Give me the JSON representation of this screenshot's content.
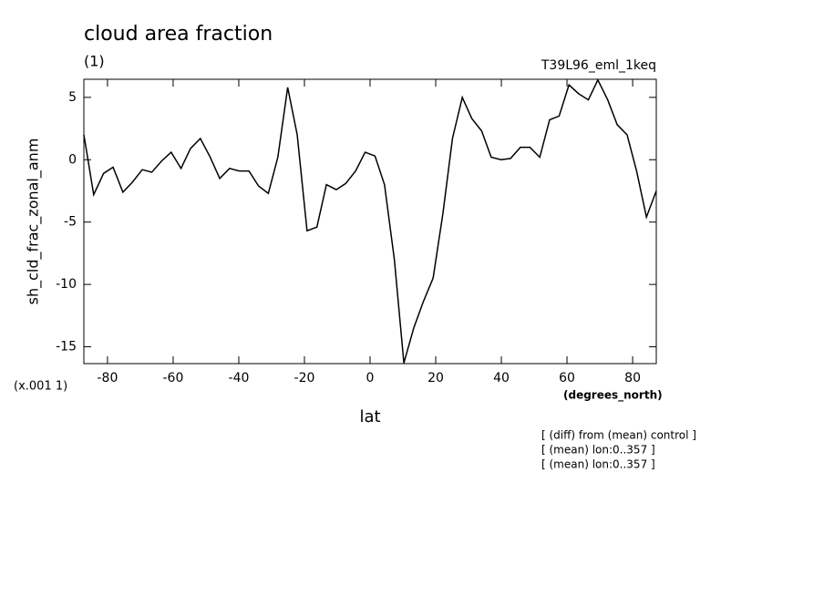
{
  "chart_data": {
    "type": "line",
    "title": "cloud area fraction",
    "subtitle": "(1)",
    "run_label": "T39L96_eml_1keq",
    "y_label": "sh_cld_frac_zonal_anm",
    "y_units": "(x.001 1)",
    "x_units": "(degrees_north)",
    "x_label": "lat",
    "notes": [
      "[ (diff) from (mean) control ]",
      "[ (mean) lon:0..357 ]",
      "[ (mean) lon:0..357 ]"
    ],
    "x": [
      -87.2,
      -84.2,
      -81.2,
      -78.3,
      -75.3,
      -72.4,
      -69.4,
      -66.5,
      -63.5,
      -60.6,
      -57.6,
      -54.7,
      -51.7,
      -48.7,
      -45.8,
      -42.8,
      -39.9,
      -36.9,
      -34.0,
      -31.0,
      -28.1,
      -25.1,
      -22.2,
      -19.2,
      -16.2,
      -13.3,
      -10.3,
      -7.4,
      -4.4,
      -1.5,
      1.5,
      4.4,
      7.4,
      10.3,
      13.3,
      16.2,
      19.2,
      22.2,
      25.1,
      28.1,
      31.0,
      34.0,
      36.9,
      39.9,
      42.8,
      45.8,
      48.7,
      51.7,
      54.7,
      57.6,
      60.6,
      63.5,
      66.5,
      69.4,
      72.4,
      75.3,
      78.3,
      81.2,
      84.2,
      87.2
    ],
    "series": [
      {
        "color": "#000000",
        "values": [
          2.0,
          -2.8,
          -1.1,
          -0.6,
          -2.6,
          -1.8,
          -0.8,
          -1.0,
          -0.1,
          0.6,
          -0.7,
          0.9,
          1.7,
          0.2,
          -1.5,
          -0.7,
          -0.9,
          -0.9,
          -2.1,
          -2.7,
          0.2,
          5.8,
          2.0,
          -5.7,
          -5.4,
          -2.0,
          -2.4,
          -1.9,
          -0.9,
          0.6,
          0.3,
          -2.0,
          -8.0,
          -16.3,
          -13.5,
          -11.4,
          -9.5,
          -4.3,
          1.7,
          5.0,
          3.3,
          2.3,
          0.2,
          0.0,
          0.1,
          1.0,
          1.0,
          0.2,
          3.2,
          3.5,
          6.0,
          5.3,
          4.8,
          6.4,
          4.8,
          2.8,
          2.0,
          -0.9,
          -4.6,
          -2.5
        ]
      }
    ],
    "xlim": [
      -87.2,
      87.2
    ],
    "ylim": [
      -16.35,
      6.45
    ],
    "xticks": [
      -80,
      -60,
      -40,
      -20,
      0,
      20,
      40,
      60,
      80
    ],
    "yticks": [
      -15,
      -10,
      -5,
      0,
      5
    ]
  }
}
